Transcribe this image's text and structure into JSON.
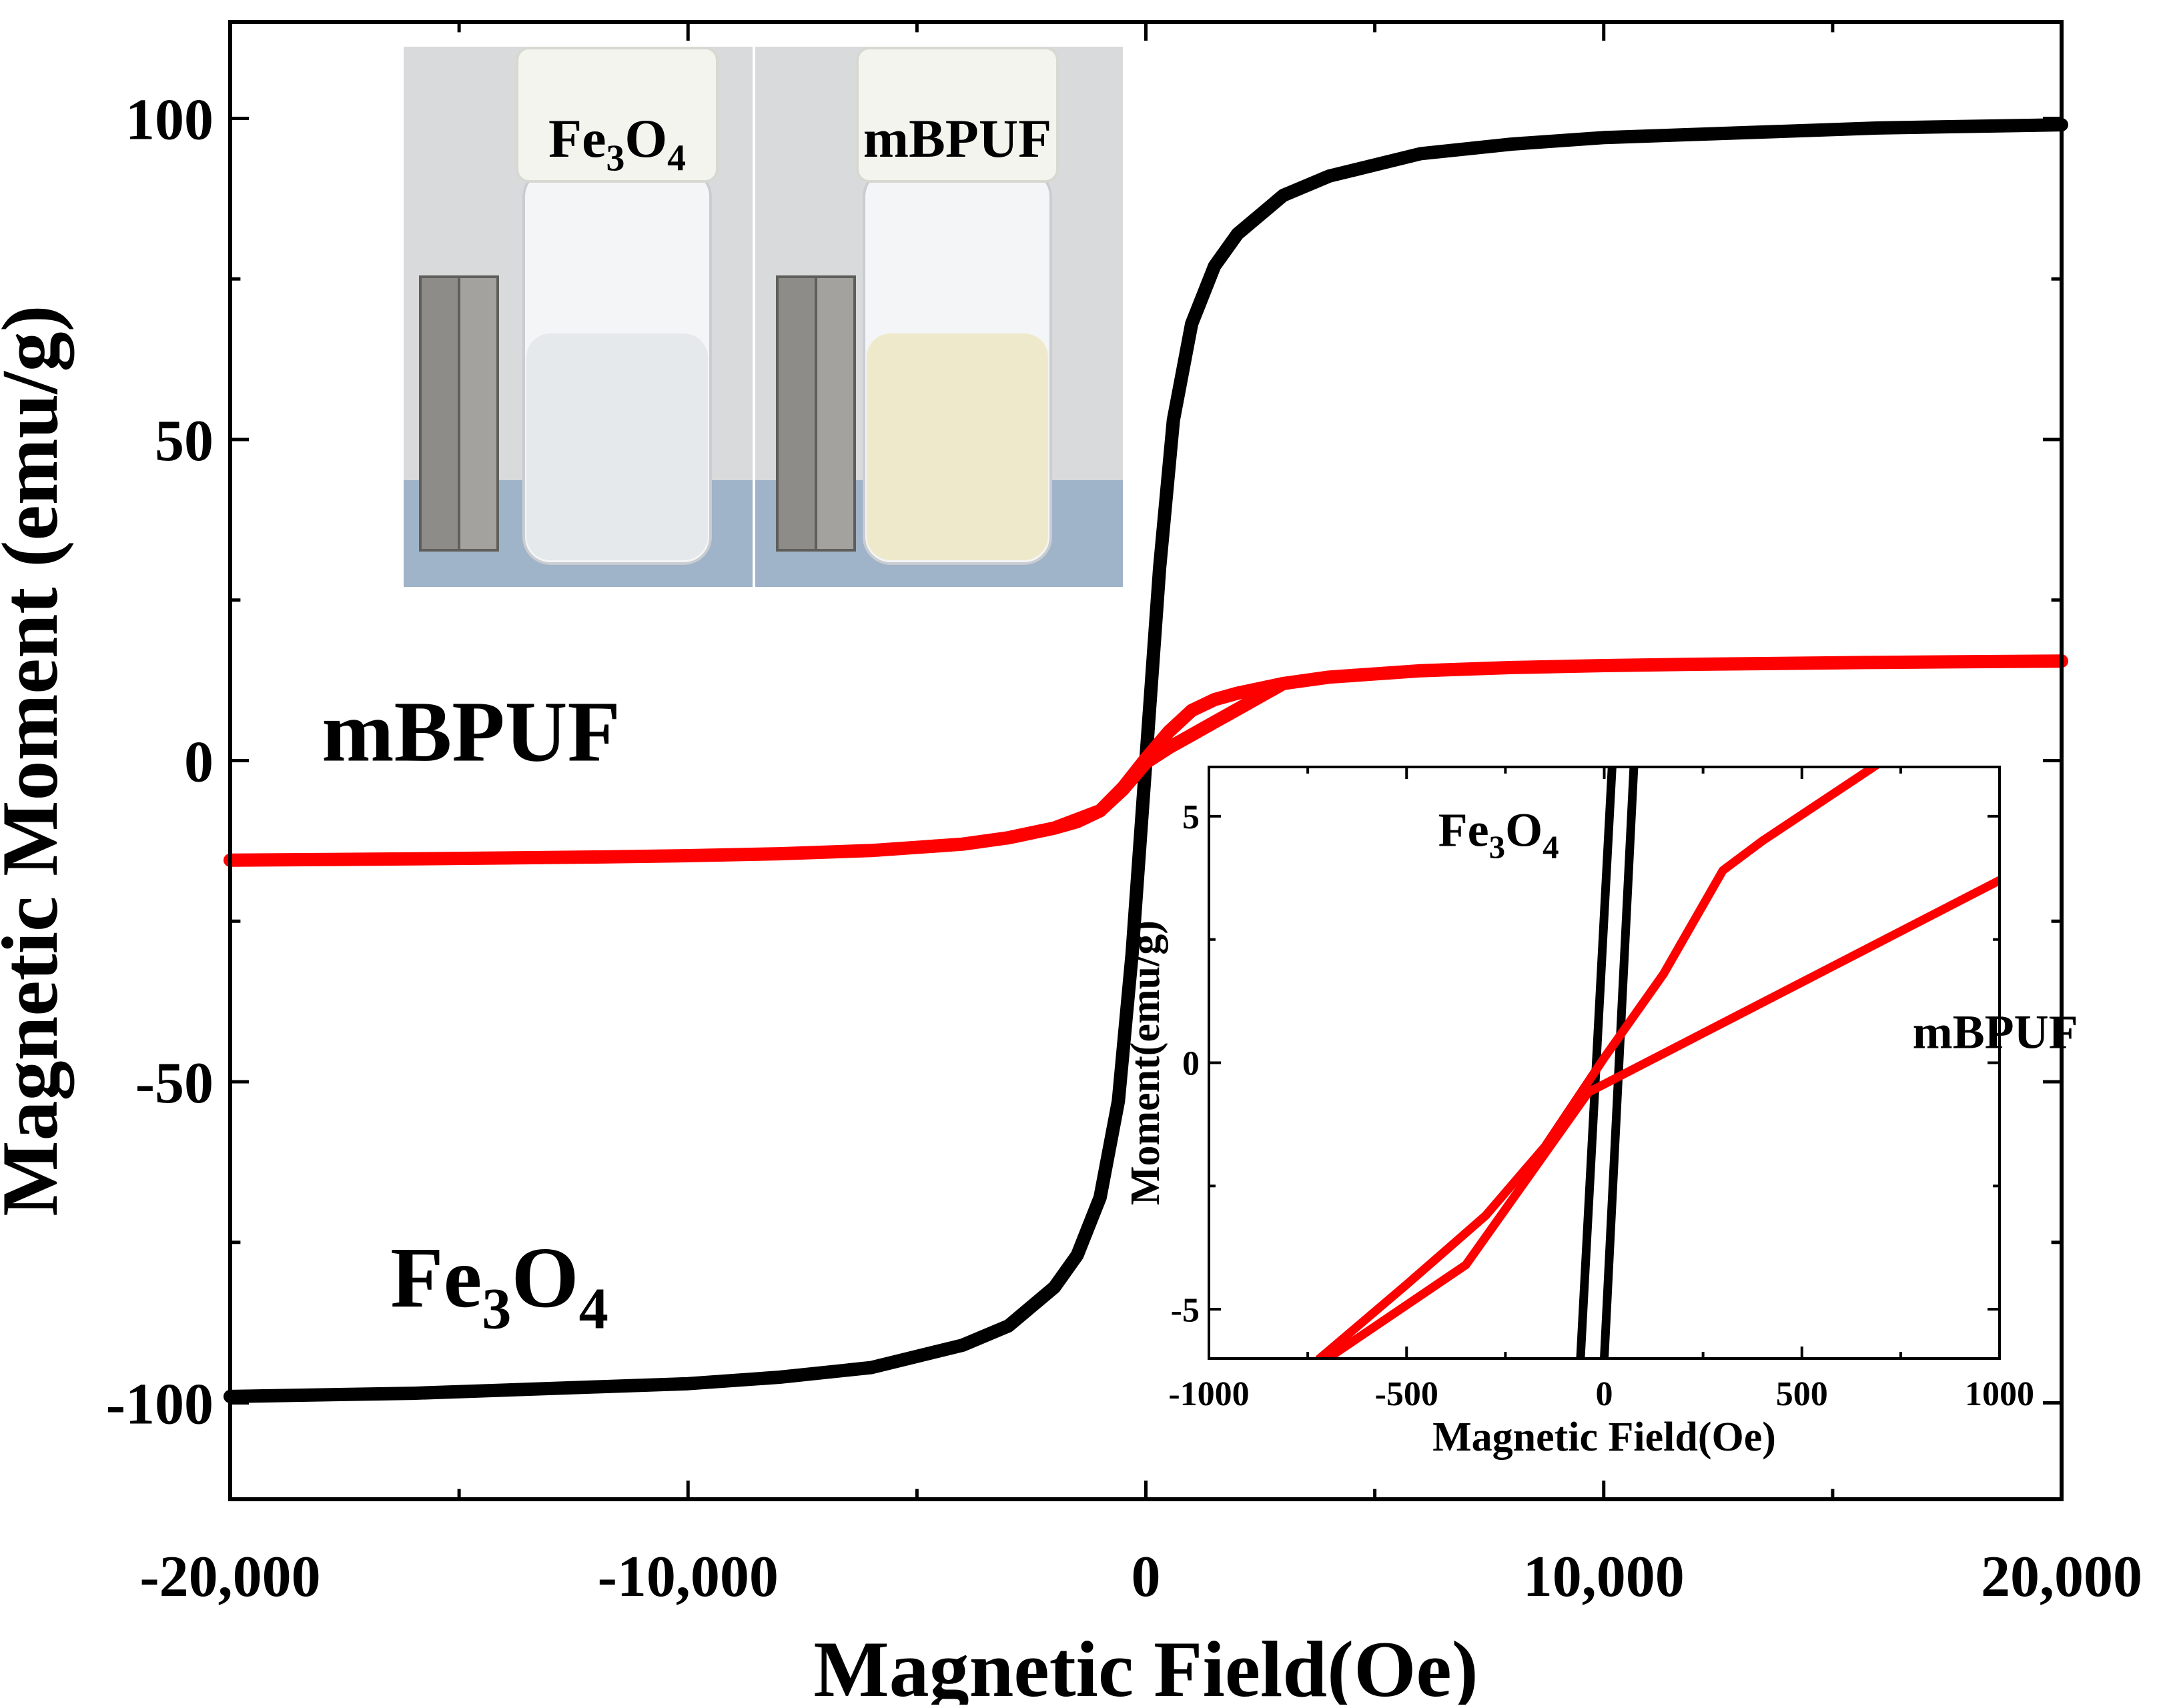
{
  "chart_data": [
    {
      "id": "main",
      "type": "line",
      "xlabel": "Magnetic Field(Oe)",
      "ylabel": "Magnetic Moment (emu/g)",
      "xlim": [
        -20000,
        20000
      ],
      "ylim": [
        -115,
        115
      ],
      "xticks": [
        -20000,
        -10000,
        0,
        10000,
        20000
      ],
      "xtick_labels": [
        "-20,000",
        "-10,000",
        "0",
        "10,000",
        "20,000"
      ],
      "yticks": [
        -100,
        -50,
        0,
        50,
        100
      ],
      "ytick_labels": [
        "-100",
        "-50",
        "0",
        "50",
        "100"
      ],
      "grid": false,
      "series": [
        {
          "name": "Fe3O4",
          "color": "#000000",
          "x": [
            -20000,
            -16000,
            -12000,
            -10000,
            -8000,
            -6000,
            -4000,
            -3000,
            -2000,
            -1500,
            -1000,
            -600,
            -300,
            0,
            300,
            600,
            1000,
            1500,
            2000,
            3000,
            4000,
            6000,
            8000,
            10000,
            12000,
            16000,
            20000
          ],
          "y": [
            -99,
            -98.5,
            -97.5,
            -97,
            -96,
            -94.5,
            -91,
            -88,
            -82,
            -77,
            -68,
            -53,
            -30,
            0,
            30,
            53,
            68,
            77,
            82,
            88,
            91,
            94.5,
            96,
            97,
            97.5,
            98.5,
            99
          ]
        },
        {
          "name": "mBPUF",
          "color": "#ff0000",
          "branches": [
            {
              "x": [
                -20000,
                -16000,
                -12000,
                -10000,
                -8000,
                -6000,
                -4000,
                -3000,
                -2000,
                -1500,
                -1000,
                -500,
                0,
                500,
                1000,
                1500,
                2000,
                3000,
                4000,
                6000,
                8000,
                10000,
                12000,
                16000,
                20000
              ],
              "y": [
                -15.5,
                -15.3,
                -15,
                -14.8,
                -14.5,
                -14,
                -13,
                -12,
                -10.5,
                -9.5,
                -7.8,
                -4.2,
                0.3,
                4.5,
                7.8,
                9.5,
                10.5,
                12,
                13,
                14,
                14.5,
                14.8,
                15,
                15.3,
                15.5
              ]
            },
            {
              "x": [
                -3000,
                -2000,
                -1000,
                -500,
                0,
                500,
                1000,
                1500,
                2000,
                2500,
                3000
              ],
              "y": [
                -12,
                -10.5,
                -7.8,
                -4.5,
                -0.3,
                2,
                4,
                6,
                8,
                10,
                12
              ]
            }
          ]
        }
      ],
      "annotations": [
        {
          "text": "mBPUF",
          "x": -18000,
          "y": 0
        },
        {
          "base": "Fe",
          "sub1": "3",
          "mid": "O",
          "sub2": "4",
          "x": -16500,
          "y": -85
        }
      ]
    },
    {
      "id": "inset",
      "type": "line",
      "xlabel": "Magnetic Field(Oe)",
      "ylabel": "Moment(emu/g)",
      "xlim": [
        -1000,
        1000
      ],
      "ylim": [
        -6,
        6
      ],
      "xticks": [
        -1000,
        -500,
        0,
        500,
        1000
      ],
      "xtick_labels": [
        "-1000",
        "-500",
        "0",
        "500",
        "1000"
      ],
      "yticks": [
        -5,
        0,
        5
      ],
      "ytick_labels": [
        "-5",
        "0",
        "5"
      ],
      "grid": false,
      "series": [
        {
          "name": "Fe3O4",
          "color": "#000000",
          "branches": [
            {
              "x": [
                -60,
                20
              ],
              "y": [
                -6,
                6
              ]
            },
            {
              "x": [
                0,
                75
              ],
              "y": [
                -6,
                6
              ]
            }
          ]
        },
        {
          "name": "mBPUF",
          "color": "#ff0000",
          "branches": [
            {
              "x": [
                -720,
                -500,
                -300,
                -150,
                0,
                150,
                300,
                400,
                700
              ],
              "y": [
                -6,
                -4.5,
                -3.1,
                -1.7,
                0.1,
                1.8,
                3.9,
                4.5,
                6.1
              ]
            },
            {
              "x": [
                -700,
                -350,
                -40,
                1000
              ],
              "y": [
                -6,
                -4.1,
                -0.6,
                3.7
              ]
            }
          ]
        }
      ],
      "annotations": [
        {
          "base": "Fe",
          "sub1": "3",
          "mid": "O",
          "sub2": "4",
          "x": -420,
          "y": 4.4
        },
        {
          "text": "mBPUF",
          "x": 780,
          "y": 0.3
        }
      ]
    }
  ],
  "photo": {
    "labels": {
      "left": {
        "base": "Fe",
        "sub1": "3",
        "mid": "O",
        "sub2": "4"
      },
      "right": "mBPUF"
    },
    "colors": {
      "background": "#d9dadc",
      "table": "#9fb3c9",
      "magnet": "#8d8c88",
      "clear_liquid": "#e6e9ec",
      "yellow_liquid": "#efe9cc",
      "cap": "#f4f4ef"
    }
  }
}
